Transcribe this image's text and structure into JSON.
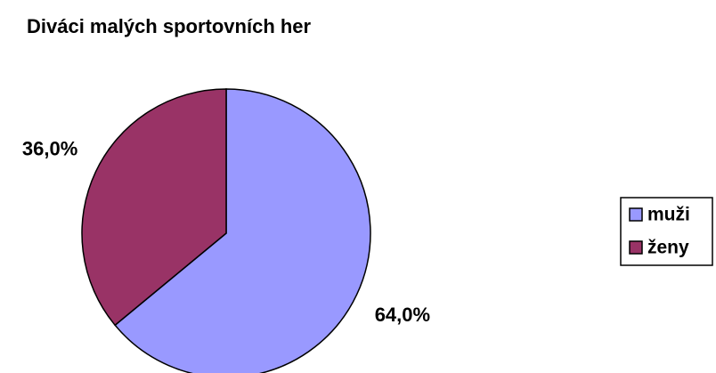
{
  "chart_data": {
    "type": "pie",
    "title": "Diváci malých sportovních her",
    "categories": [
      "muži",
      "ženy"
    ],
    "values": [
      64,
      36
    ],
    "value_labels": [
      "64,0%",
      "36,0%"
    ],
    "colors": [
      "#9999ff",
      "#993366"
    ],
    "legend": "right"
  }
}
